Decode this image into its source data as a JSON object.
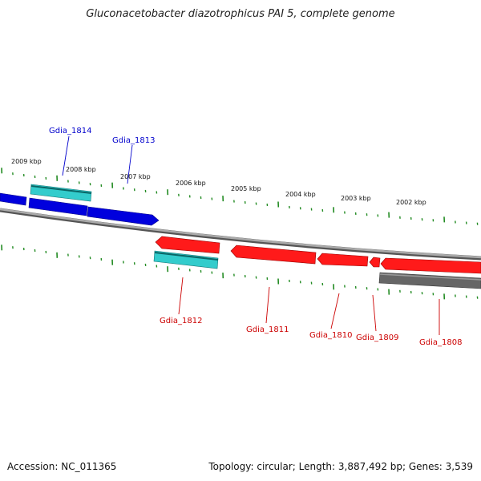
{
  "title": "Gluconacetobacter diazotrophicus PAI 5, complete genome",
  "footer": {
    "accession": "Accession: NC_011365",
    "summary": "Topology: circular; Length: 3,887,492 bp; Genes: 3,539"
  },
  "scale_labels": [
    "2009 kbp",
    "2008 kbp",
    "2007 kbp",
    "2006 kbp",
    "2005 kbp",
    "2004 kbp",
    "2003 kbp",
    "2002 kbp"
  ],
  "genes": {
    "forward": [
      "Gdia_1814",
      "Gdia_1813"
    ],
    "reverse": [
      "Gdia_1812",
      "Gdia_1811",
      "Gdia_1810",
      "Gdia_1809",
      "Gdia_1808"
    ]
  },
  "colors": {
    "forward_cds": "#0000e6",
    "reverse_cds": "#ff0000",
    "rna": "#33cccc",
    "other": "#666666",
    "backbone": "#888888",
    "ticks": "#228b22",
    "forward_label": "#0000cc",
    "reverse_label": "#cc0000"
  }
}
